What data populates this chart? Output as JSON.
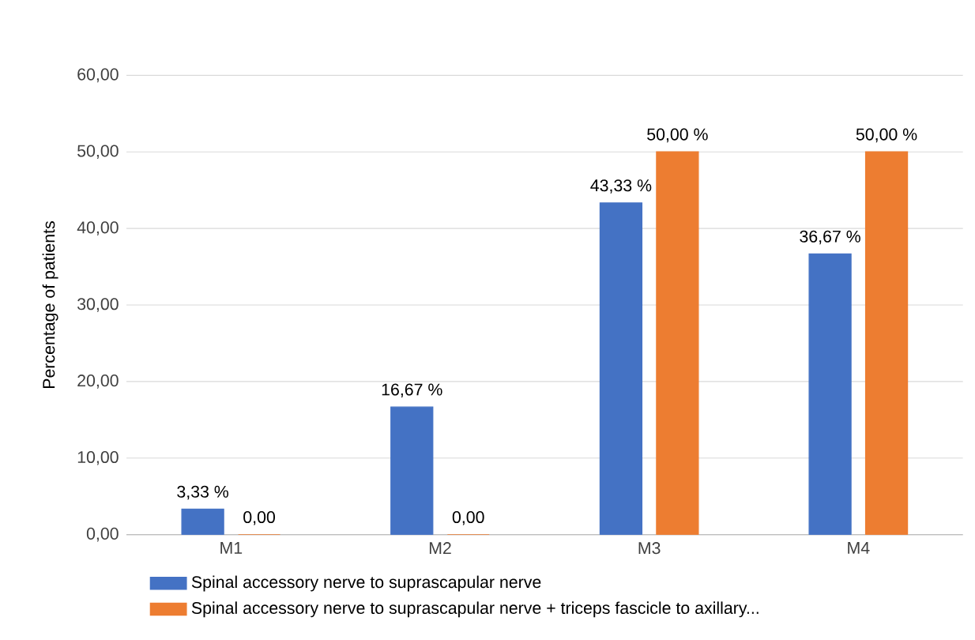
{
  "chart_data": {
    "type": "bar",
    "ylabel": "Percentage of patients",
    "categories": [
      "M1",
      "M2",
      "M3",
      "M4"
    ],
    "series": [
      {
        "name": "Spinal accessory nerve to suprascapular nerve",
        "color": "#4472c4",
        "values": [
          3.33,
          16.67,
          43.33,
          36.67
        ],
        "value_labels": [
          "3,33 %",
          "16,67 %",
          "43,33 %",
          "36,67 %"
        ]
      },
      {
        "name": "Spinal accessory nerve to suprascapular nerve + triceps fascicle to axillary...",
        "color": "#ed7d31",
        "values": [
          0.0,
          0.0,
          50.0,
          50.0
        ],
        "value_labels": [
          "0,00",
          "0,00",
          "50,00 %",
          "50,00 %"
        ]
      }
    ],
    "ylim": [
      0,
      60
    ],
    "yticks": [
      {
        "value": 0,
        "label": "0,00"
      },
      {
        "value": 10,
        "label": "10,00"
      },
      {
        "value": 20,
        "label": "20,00"
      },
      {
        "value": 30,
        "label": "30,00"
      },
      {
        "value": 40,
        "label": "40,00"
      },
      {
        "value": 50,
        "label": "50,00"
      },
      {
        "value": 60,
        "label": "60,00"
      }
    ],
    "grid": "y",
    "legend": "bottom"
  }
}
